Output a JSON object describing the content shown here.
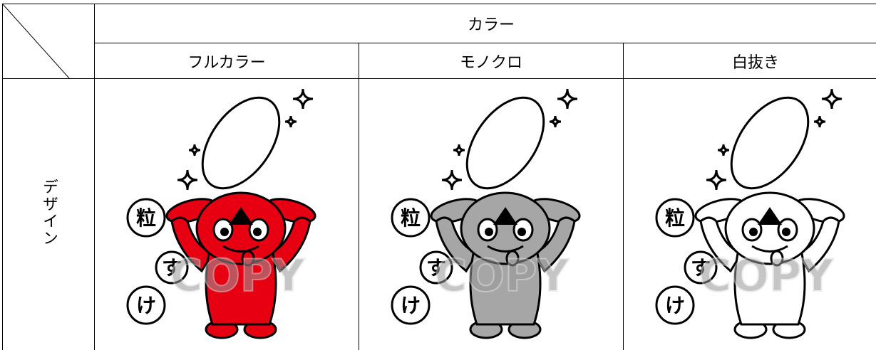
{
  "table": {
    "header": {
      "group": "カラー",
      "columns": [
        "フルカラー",
        "モノクロ",
        "白抜き"
      ]
    },
    "rows": [
      {
        "label": "デザイン",
        "images": [
          {
            "fill": "#e60012",
            "bubbles": [
              "粒",
              "す",
              "け"
            ],
            "watermark": "COPY"
          },
          {
            "fill": "#a6a6a6",
            "bubbles": [
              "粒",
              "す",
              "け"
            ],
            "watermark": "COPY"
          },
          {
            "fill": "#ffffff",
            "bubbles": [
              "粒",
              "す",
              "け"
            ],
            "watermark": "COPY"
          }
        ]
      }
    ]
  }
}
